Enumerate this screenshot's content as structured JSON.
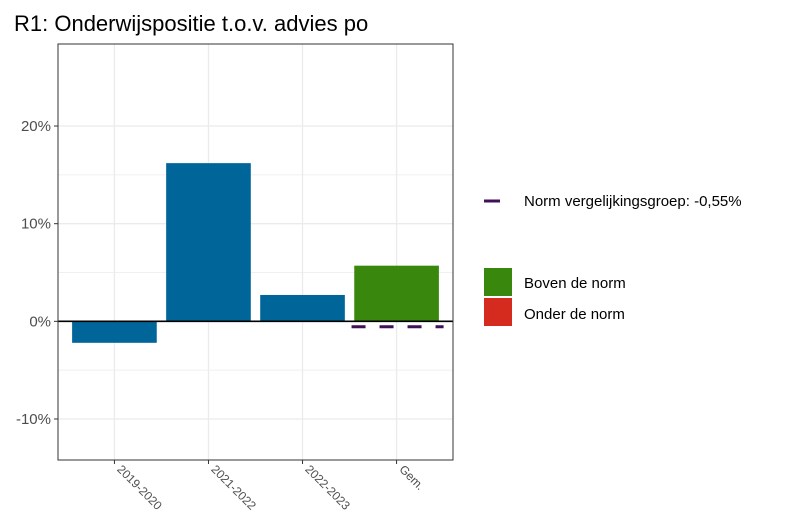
{
  "chart_data": {
    "type": "bar",
    "title": "R1: Onderwijspositie t.o.v. advies po",
    "categories": [
      "2019-2020",
      "2021-2022",
      "2022-2023",
      "Gem."
    ],
    "values": [
      -2.2,
      16.2,
      2.7,
      5.7
    ],
    "value_unit": "%",
    "bar_colors": [
      "#006699",
      "#006699",
      "#006699",
      "#3a870e"
    ],
    "norm": {
      "label": "Norm vergelijkingsgroep: -0,55%",
      "value": -0.55,
      "color": "#3f1157",
      "applies_to": "Gem."
    },
    "ylim": [
      -14.2,
      28.4
    ],
    "yticks": [
      -10,
      0,
      10,
      20
    ],
    "ytick_labels": [
      "-10%",
      "0%",
      "10%",
      "20%"
    ],
    "grid": true,
    "legend": {
      "placement": "right",
      "items": [
        {
          "label": "Boven de norm",
          "color": "#3a870e"
        },
        {
          "label": "Onder de norm",
          "color": "#d52b1e"
        }
      ]
    },
    "xlabel": "",
    "ylabel": ""
  }
}
